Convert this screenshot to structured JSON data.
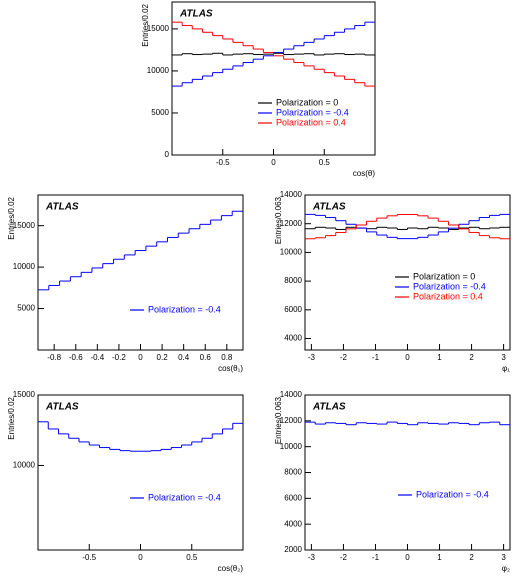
{
  "chart_data": [
    {
      "type": "histogram",
      "annotation": "ATLAS",
      "ylabel": "Entries/0.02",
      "xlabel": "cos(θ)",
      "bins": [
        -1,
        -0.9,
        -0.8,
        -0.7,
        -0.6,
        -0.5,
        -0.4,
        -0.3,
        -0.2,
        -0.1,
        0,
        0.1,
        0.2,
        0.3,
        0.4,
        0.5,
        0.6,
        0.7,
        0.8,
        0.9,
        1
      ],
      "series": [
        {
          "name": "Polarization = 0",
          "color": "#000000",
          "values": [
            11900,
            12050,
            11950,
            12000,
            12100,
            11900,
            12000,
            12050,
            11950,
            12000,
            12100,
            11950,
            12000,
            12050,
            11900,
            12000,
            12050,
            11950,
            12000,
            11900
          ]
        },
        {
          "name": "Polarization = -0.4",
          "color": "#0000ff",
          "values": [
            8200,
            8600,
            9000,
            9400,
            9800,
            10200,
            10600,
            11000,
            11400,
            11800,
            12200,
            12600,
            13000,
            13400,
            13800,
            14200,
            14600,
            15000,
            15400,
            15800
          ]
        },
        {
          "name": "Polarization = 0.4",
          "color": "#ff0000",
          "values": [
            15800,
            15400,
            15000,
            14600,
            14200,
            13800,
            13400,
            13000,
            12600,
            12200,
            11800,
            11400,
            11000,
            10600,
            10200,
            9800,
            9400,
            9000,
            8600,
            8200
          ]
        }
      ],
      "xlim": [
        -1,
        1
      ],
      "ylim": [
        0,
        18200
      ],
      "xticks": [
        -0.5,
        0,
        0.5
      ],
      "yticks": [
        0,
        5000,
        10000,
        15000
      ]
    },
    {
      "type": "histogram",
      "annotation": "ATLAS",
      "ylabel": "Entries/0.02",
      "xlabel": "cos(θ₁)",
      "bins": [
        -0.95,
        -0.85,
        -0.75,
        -0.65,
        -0.55,
        -0.45,
        -0.35,
        -0.25,
        -0.15,
        -0.05,
        0.05,
        0.15,
        0.25,
        0.35,
        0.45,
        0.55,
        0.65,
        0.75,
        0.85,
        0.95
      ],
      "series": [
        {
          "name": "Polarization = -0.4",
          "color": "#0000ff",
          "values": [
            7260,
            7790,
            8320,
            8840,
            9370,
            9900,
            10420,
            10950,
            11470,
            12000,
            12530,
            13050,
            13580,
            14100,
            14630,
            15160,
            15680,
            16210,
            16740
          ]
        }
      ],
      "xlim": [
        -0.95,
        0.95
      ],
      "ylim": [
        0,
        18700
      ],
      "xticks": [
        -0.8,
        -0.6,
        -0.4,
        -0.2,
        0,
        0.2,
        0.4,
        0.6,
        0.8
      ],
      "yticks": [
        5000,
        10000,
        15000
      ]
    },
    {
      "type": "histogram",
      "annotation": "ATLAS",
      "ylabel": "Entries/0.063",
      "xlabel": "φ₁",
      "bins": [
        -3.2,
        -2.88,
        -2.56,
        -2.24,
        -1.92,
        -1.6,
        -1.28,
        -0.96,
        -0.64,
        -0.32,
        0,
        0.32,
        0.64,
        0.96,
        1.28,
        1.6,
        1.92,
        2.24,
        2.56,
        2.88,
        3.2
      ],
      "series": [
        {
          "name": "Polarization = 0",
          "color": "#000000",
          "values": [
            11650,
            11750,
            11700,
            11600,
            11750,
            11700,
            11650,
            11750,
            11700,
            11600,
            11700,
            11650,
            11750,
            11700,
            11600,
            11700,
            11750,
            11650,
            11700,
            11750
          ]
        },
        {
          "name": "Polarization = -0.4",
          "color": "#0000ff",
          "values": [
            12650,
            12580,
            12430,
            12210,
            11960,
            11690,
            11430,
            11210,
            11050,
            10960,
            10960,
            11050,
            11210,
            11430,
            11690,
            11960,
            12210,
            12430,
            12580,
            12650
          ]
        },
        {
          "name": "Polarization = 0.4",
          "color": "#ff0000",
          "values": [
            10950,
            11020,
            11170,
            11390,
            11640,
            11910,
            12170,
            12390,
            12550,
            12640,
            12640,
            12550,
            12390,
            12170,
            11910,
            11640,
            11390,
            11170,
            11020,
            10950
          ]
        }
      ],
      "xlim": [
        -3.2,
        3.2
      ],
      "ylim": [
        3200,
        14000
      ],
      "xticks": [
        -3,
        -2,
        -1,
        0,
        1,
        2,
        3
      ],
      "yticks": [
        4000,
        6000,
        8000,
        10000,
        12000,
        14000
      ]
    },
    {
      "type": "histogram",
      "annotation": "ATLAS",
      "ylabel": "Entries/0.02",
      "xlabel": "cos(θ₂)",
      "bins": [
        -1,
        -0.9,
        -0.8,
        -0.7,
        -0.6,
        -0.5,
        -0.4,
        -0.3,
        -0.2,
        -0.1,
        0,
        0.1,
        0.2,
        0.3,
        0.4,
        0.5,
        0.6,
        0.7,
        0.8,
        0.9,
        1
      ],
      "series": [
        {
          "name": "Polarization = -0.4",
          "color": "#0000ff",
          "values": [
            13100,
            12590,
            12240,
            11930,
            11670,
            11450,
            11270,
            11140,
            11050,
            11010,
            11010,
            11050,
            11140,
            11270,
            11450,
            11670,
            11930,
            12240,
            12590,
            12990
          ]
        }
      ],
      "xlim": [
        -1,
        1
      ],
      "ylim": [
        4000,
        15000
      ],
      "xticks": [
        -0.5,
        0,
        0.5
      ],
      "yticks": [
        10000,
        15000
      ]
    },
    {
      "type": "histogram",
      "annotation": "ATLAS",
      "ylabel": "Entries/0.063",
      "xlabel": "φ₂",
      "bins": [
        -3.2,
        -2.88,
        -2.56,
        -2.24,
        -1.92,
        -1.6,
        -1.28,
        -0.96,
        -0.64,
        -0.32,
        0,
        0.32,
        0.64,
        0.96,
        1.28,
        1.6,
        1.92,
        2.24,
        2.56,
        2.88,
        3.2
      ],
      "series": [
        {
          "name": "Polarization = -0.4",
          "color": "#0000ff",
          "values": [
            11900,
            11750,
            11850,
            11800,
            11700,
            11850,
            11800,
            11750,
            11900,
            11800,
            11700,
            11850,
            11800,
            11750,
            11850,
            11800,
            11700,
            11850,
            11900,
            11700
          ]
        }
      ],
      "xlim": [
        -3.2,
        3.2
      ],
      "ylim": [
        2000,
        14000
      ],
      "xticks": [
        -3,
        -2,
        -1,
        0,
        1,
        2,
        3
      ],
      "yticks": [
        2000,
        4000,
        6000,
        8000,
        10000,
        12000,
        14000
      ]
    }
  ]
}
